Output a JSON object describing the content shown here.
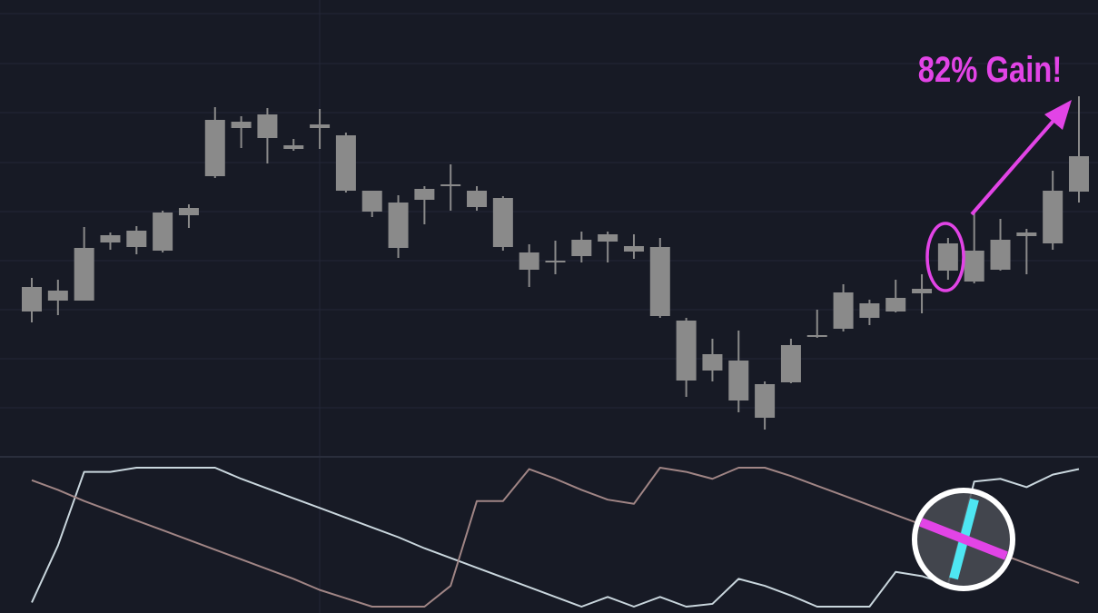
{
  "chart_data": [
    {
      "type": "candlestick",
      "annotation": "82% Gain!",
      "color": "#8a8a8a",
      "ylim": [
        0,
        500
      ],
      "yticks": [
        51,
        105,
        159,
        213,
        267,
        321,
        376,
        430,
        485
      ],
      "grid": true,
      "open": [
        157,
        180,
        169,
        233,
        228,
        224,
        263,
        306,
        359,
        374,
        340,
        359,
        351,
        290,
        277,
        280,
        295,
        290,
        282,
        222,
        211,
        218,
        234,
        229,
        228,
        147,
        92,
        103,
        77,
        79,
        129,
        138,
        166,
        157,
        177,
        202,
        224,
        203,
        240,
        232,
        289
      ],
      "high": [
        194,
        192,
        250,
        244,
        251,
        268,
        275,
        382,
        372,
        381,
        347,
        380,
        354,
        290,
        285,
        295,
        319,
        295,
        284,
        231,
        235,
        245,
        245,
        242,
        238,
        150,
        127,
        136,
        80,
        127,
        159,
        187,
        170,
        192,
        198,
        238,
        266,
        259,
        248,
        312,
        394
      ],
      "low": [
        145,
        153,
        169,
        225,
        220,
        222,
        249,
        304,
        337,
        320,
        334,
        336,
        288,
        261,
        216,
        253,
        268,
        268,
        224,
        184,
        198,
        211,
        211,
        215,
        150,
        63,
        80,
        46,
        27,
        78,
        128,
        135,
        142,
        156,
        155,
        192,
        188,
        202,
        198,
        225,
        277
      ],
      "close": [
        184,
        169,
        227,
        241,
        246,
        266,
        271,
        368,
        366,
        348,
        336,
        363,
        290,
        267,
        227,
        292,
        297,
        272,
        228,
        203,
        213,
        236,
        242,
        223,
        152,
        81,
        110,
        59,
        40,
        120,
        131,
        178,
        150,
        172,
        182,
        232,
        190,
        236,
        244,
        290,
        328
      ]
    },
    {
      "type": "line",
      "ylim": [
        0,
        100
      ],
      "series": [
        {
          "color": "#c9d6dd",
          "values": [
            3,
            44,
            97,
            97,
            100,
            100,
            100,
            100,
            92,
            85,
            78,
            71,
            64,
            57,
            50,
            42,
            35,
            28,
            21,
            14,
            7,
            0,
            7,
            0,
            7,
            0,
            2,
            20,
            15,
            8,
            0,
            0,
            0,
            25,
            22,
            16,
            90,
            92,
            86,
            95,
            99
          ]
        },
        {
          "color": "#a08585",
          "values": [
            91,
            84,
            76,
            69,
            62,
            55,
            48,
            41,
            34,
            27,
            20,
            12,
            6,
            0,
            0,
            0,
            15,
            76,
            76,
            99,
            92,
            84,
            77,
            74,
            100,
            97,
            92,
            100,
            100,
            94,
            87,
            80,
            73,
            66,
            59,
            52,
            45,
            38,
            31,
            24,
            17
          ]
        }
      ]
    }
  ]
}
